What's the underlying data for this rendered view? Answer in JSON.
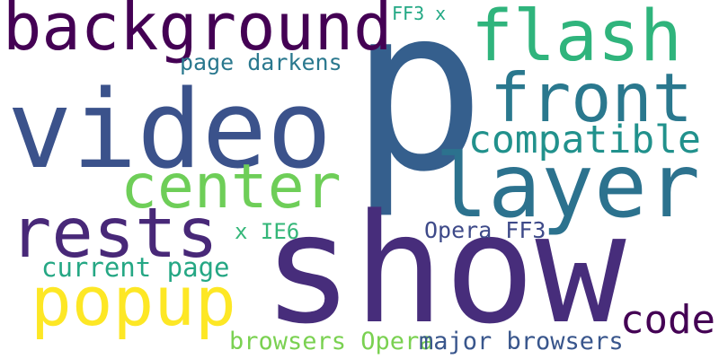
{
  "word_cloud": {
    "words": [
      {
        "text": "p",
        "color": "#355f8d"
      },
      {
        "text": "show",
        "color": "#472d7b"
      },
      {
        "text": "video",
        "color": "#3b528b"
      },
      {
        "text": "layer",
        "color": "#2c728e"
      },
      {
        "text": "background",
        "color": "#440154"
      },
      {
        "text": "flash",
        "color": "#2fb47c"
      },
      {
        "text": "front",
        "color": "#2a788e"
      },
      {
        "text": "center",
        "color": "#6ece58"
      },
      {
        "text": "rests",
        "color": "#482878"
      },
      {
        "text": "popup",
        "color": "#fde725"
      },
      {
        "text": "compatible",
        "color": "#21918c"
      },
      {
        "text": "code",
        "color": "#440154"
      },
      {
        "text": "current page",
        "color": "#25a784"
      },
      {
        "text": "browsers Opera",
        "color": "#7ad151"
      },
      {
        "text": "major browsers",
        "color": "#39568c"
      },
      {
        "text": "page darkens",
        "color": "#2a788e"
      },
      {
        "text": "Opera FF3",
        "color": "#3e4a89"
      },
      {
        "text": "x IE6",
        "color": "#35b779"
      },
      {
        "text": "FF3 x",
        "color": "#22a884"
      }
    ]
  }
}
